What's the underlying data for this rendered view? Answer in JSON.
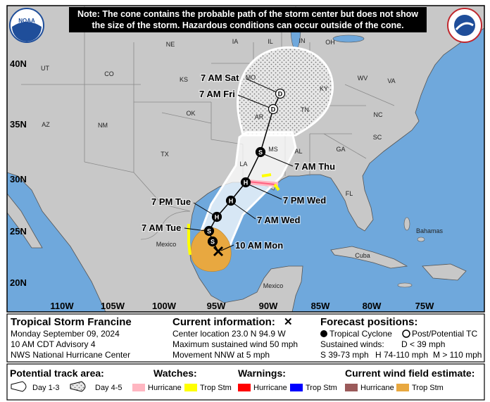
{
  "note": [
    "Note: The cone contains the probable path of the storm center but does not show",
    "the size of the storm. Hazardous conditions can occur outside of the cone."
  ],
  "logo": "NOAA",
  "map": {
    "lat_labels": [
      "40N",
      "35N",
      "30N",
      "25N",
      "20N"
    ],
    "lon_labels": [
      "110W",
      "105W",
      "100W",
      "95W",
      "90W",
      "85W",
      "80W",
      "75W"
    ],
    "places": [
      "UT",
      "CO",
      "NE",
      "IA",
      "IL",
      "IN",
      "OH",
      "KS",
      "MO",
      "KY",
      "WV",
      "VA",
      "OK",
      "AR",
      "TN",
      "NC",
      "SC",
      "AZ",
      "NM",
      "TX",
      "LA",
      "MS",
      "AL",
      "GA",
      "FL",
      "Mexico",
      "Mexico",
      "Cuba",
      "Bahamas"
    ],
    "current": "10 AM Mon",
    "forecast_points": [
      {
        "letter": "S"
      },
      {
        "label": "7 AM Tue",
        "letter": "S"
      },
      {
        "label": "7 PM Tue",
        "letter": "H"
      },
      {
        "label": "7 AM Wed",
        "letter": "H"
      },
      {
        "label": "7 PM Wed",
        "letter": "H"
      },
      {
        "label": "7 AM Thu",
        "letter": "S"
      },
      {
        "label": "7 AM Fri",
        "letter": "D"
      },
      {
        "label": "7 AM Sat",
        "letter": "D"
      }
    ]
  },
  "info": {
    "title": "Tropical Storm Francine",
    "date": "Monday September 09, 2024",
    "advisory": "10 AM CDT Advisory 4",
    "center": "NWS National Hurricane Center",
    "current_heading": "Current information:",
    "current_symbol": "✕",
    "location": "Center location 23.0 N 94.9 W",
    "wind": "Maximum sustained wind 50 mph",
    "movement": "Movement NNW at 5 mph",
    "forecast_heading": "Forecast positions:",
    "tropical_cyclone": "Tropical Cyclone",
    "post_tc": "Post/Potential TC",
    "sustained": "Sustained winds:",
    "d_range": "D < 39 mph",
    "s_range": "S 39-73 mph",
    "h_range": "H 74-110 mph",
    "m_range": "M > 110 mph"
  },
  "legend": {
    "track_heading": "Potential track area:",
    "day13": "Day 1-3",
    "day45": "Day 4-5",
    "watches_heading": "Watches:",
    "watch_hurricane": "Hurricane",
    "watch_tropstm": "Trop Stm",
    "warnings_heading": "Warnings:",
    "warning_hurricane": "Hurricane",
    "warning_tropstm": "Trop Stm",
    "wind_heading": "Current wind field estimate:",
    "wind_hurricane": "Hurricane",
    "wind_tropstm": "Trop Stm"
  }
}
